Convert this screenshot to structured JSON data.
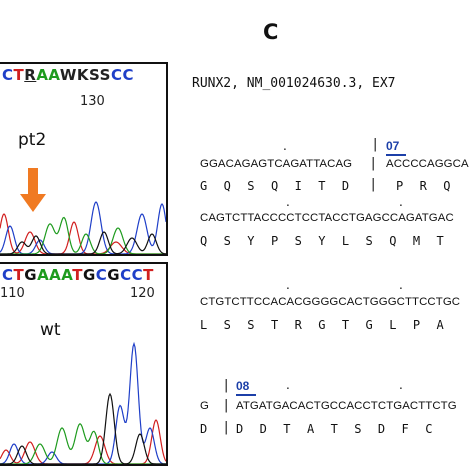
{
  "panel_label": "C",
  "gene_header": "RUNX2, NM_001024630.3, EX7",
  "chromatogram_top": {
    "bases": [
      {
        "b": "C",
        "c": "C"
      },
      {
        "b": "T",
        "c": "T"
      },
      {
        "b": "R",
        "c": "X",
        "u": true
      },
      {
        "b": "A",
        "c": "A"
      },
      {
        "b": "A",
        "c": "A"
      },
      {
        "b": "W",
        "c": "X"
      },
      {
        "b": "K",
        "c": "X"
      },
      {
        "b": "S",
        "c": "X"
      },
      {
        "b": "S",
        "c": "X"
      },
      {
        "b": "C",
        "c": "C"
      },
      {
        "b": "C",
        "c": "C"
      }
    ],
    "position": "130",
    "sample_label": "pt2"
  },
  "chromatogram_bottom": {
    "bases": [
      {
        "b": "C",
        "c": "C"
      },
      {
        "b": "T",
        "c": "T"
      },
      {
        "b": "G",
        "c": "G"
      },
      {
        "b": "A",
        "c": "A"
      },
      {
        "b": "A",
        "c": "A"
      },
      {
        "b": "A",
        "c": "A"
      },
      {
        "b": "T",
        "c": "T"
      },
      {
        "b": "G",
        "c": "G"
      },
      {
        "b": "C",
        "c": "C"
      },
      {
        "b": "G",
        "c": "G"
      },
      {
        "b": "C",
        "c": "C"
      },
      {
        "b": "C",
        "c": "C"
      },
      {
        "b": "T",
        "c": "T"
      }
    ],
    "position_left": "110",
    "position_right": "120",
    "sample_label": "wt"
  },
  "sequence_blocks": [
    {
      "dna_left": "GGACAGAGTCAGATTACAG",
      "dna_right": "ACCCCAGGCA",
      "aa_left": "G Q S Q I T D",
      "aa_right": "P R Q",
      "exon": "07"
    },
    {
      "dna": "CAGTCTTACCCCTCCTACCTGAGCCAGATGAC",
      "aa": "Q S Y P S Y L S Q M T"
    },
    {
      "dna": "CTGTCTTCCACACGGGGCACTGGGCTTCCTGC",
      "aa": "L S S T R G T G L P A"
    },
    {
      "dna_left": "G",
      "dna_right": "ATGATGACACTGCCACCTCTGACTTCTG",
      "aa_left": "D",
      "aa_right": "D D T A T S D F C",
      "exon": "08"
    }
  ],
  "colors": {
    "A": "#1e9b1e",
    "C": "#1f3fc8",
    "G": "#111111",
    "T": "#d11f1f",
    "arrow": "#f07a22",
    "exon": "#1c3fa8"
  }
}
